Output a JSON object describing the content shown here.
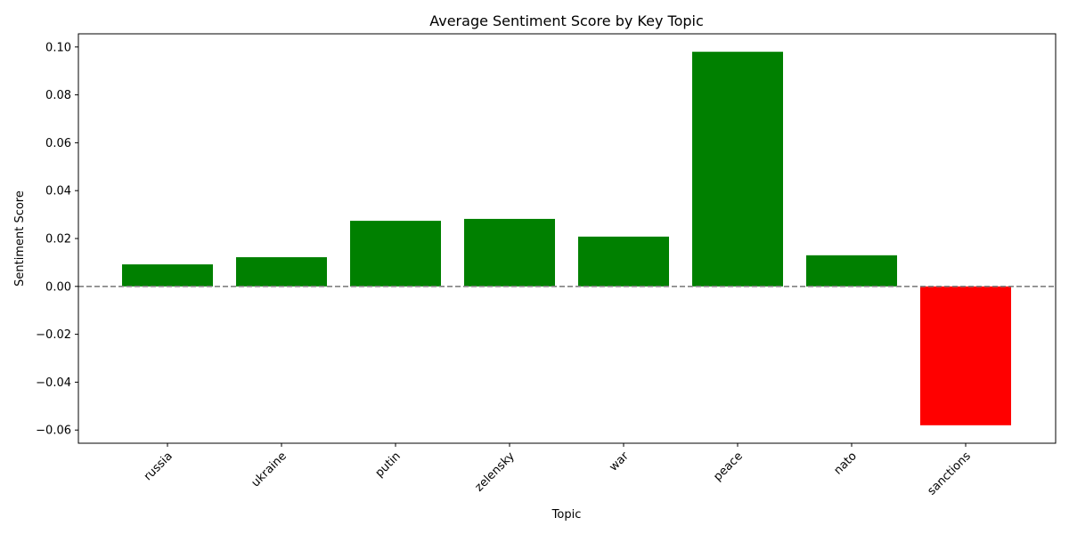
{
  "chart_data": {
    "type": "bar",
    "title": "Average Sentiment Score by Key Topic",
    "xlabel": "Topic",
    "ylabel": "Sentiment Score",
    "categories": [
      "russia",
      "ukraine",
      "putin",
      "zelensky",
      "war",
      "peace",
      "nato",
      "sanctions"
    ],
    "values": [
      0.0092,
      0.0122,
      0.0274,
      0.0282,
      0.0208,
      0.098,
      0.013,
      -0.058
    ],
    "ylim": [
      -0.0655,
      0.1055
    ],
    "yticks": [
      -0.06,
      -0.04,
      -0.02,
      0.0,
      0.02,
      0.04,
      0.06,
      0.08,
      0.1
    ],
    "ytick_labels": [
      "−0.06",
      "−0.04",
      "−0.02",
      "0.00",
      "0.02",
      "0.04",
      "0.06",
      "0.08",
      "0.10"
    ],
    "positive_color": "#008000",
    "negative_color": "#ff0000",
    "reference_line": {
      "y": 0,
      "style": "dashed",
      "color": "#808080"
    },
    "grid": false,
    "legend": "none"
  }
}
